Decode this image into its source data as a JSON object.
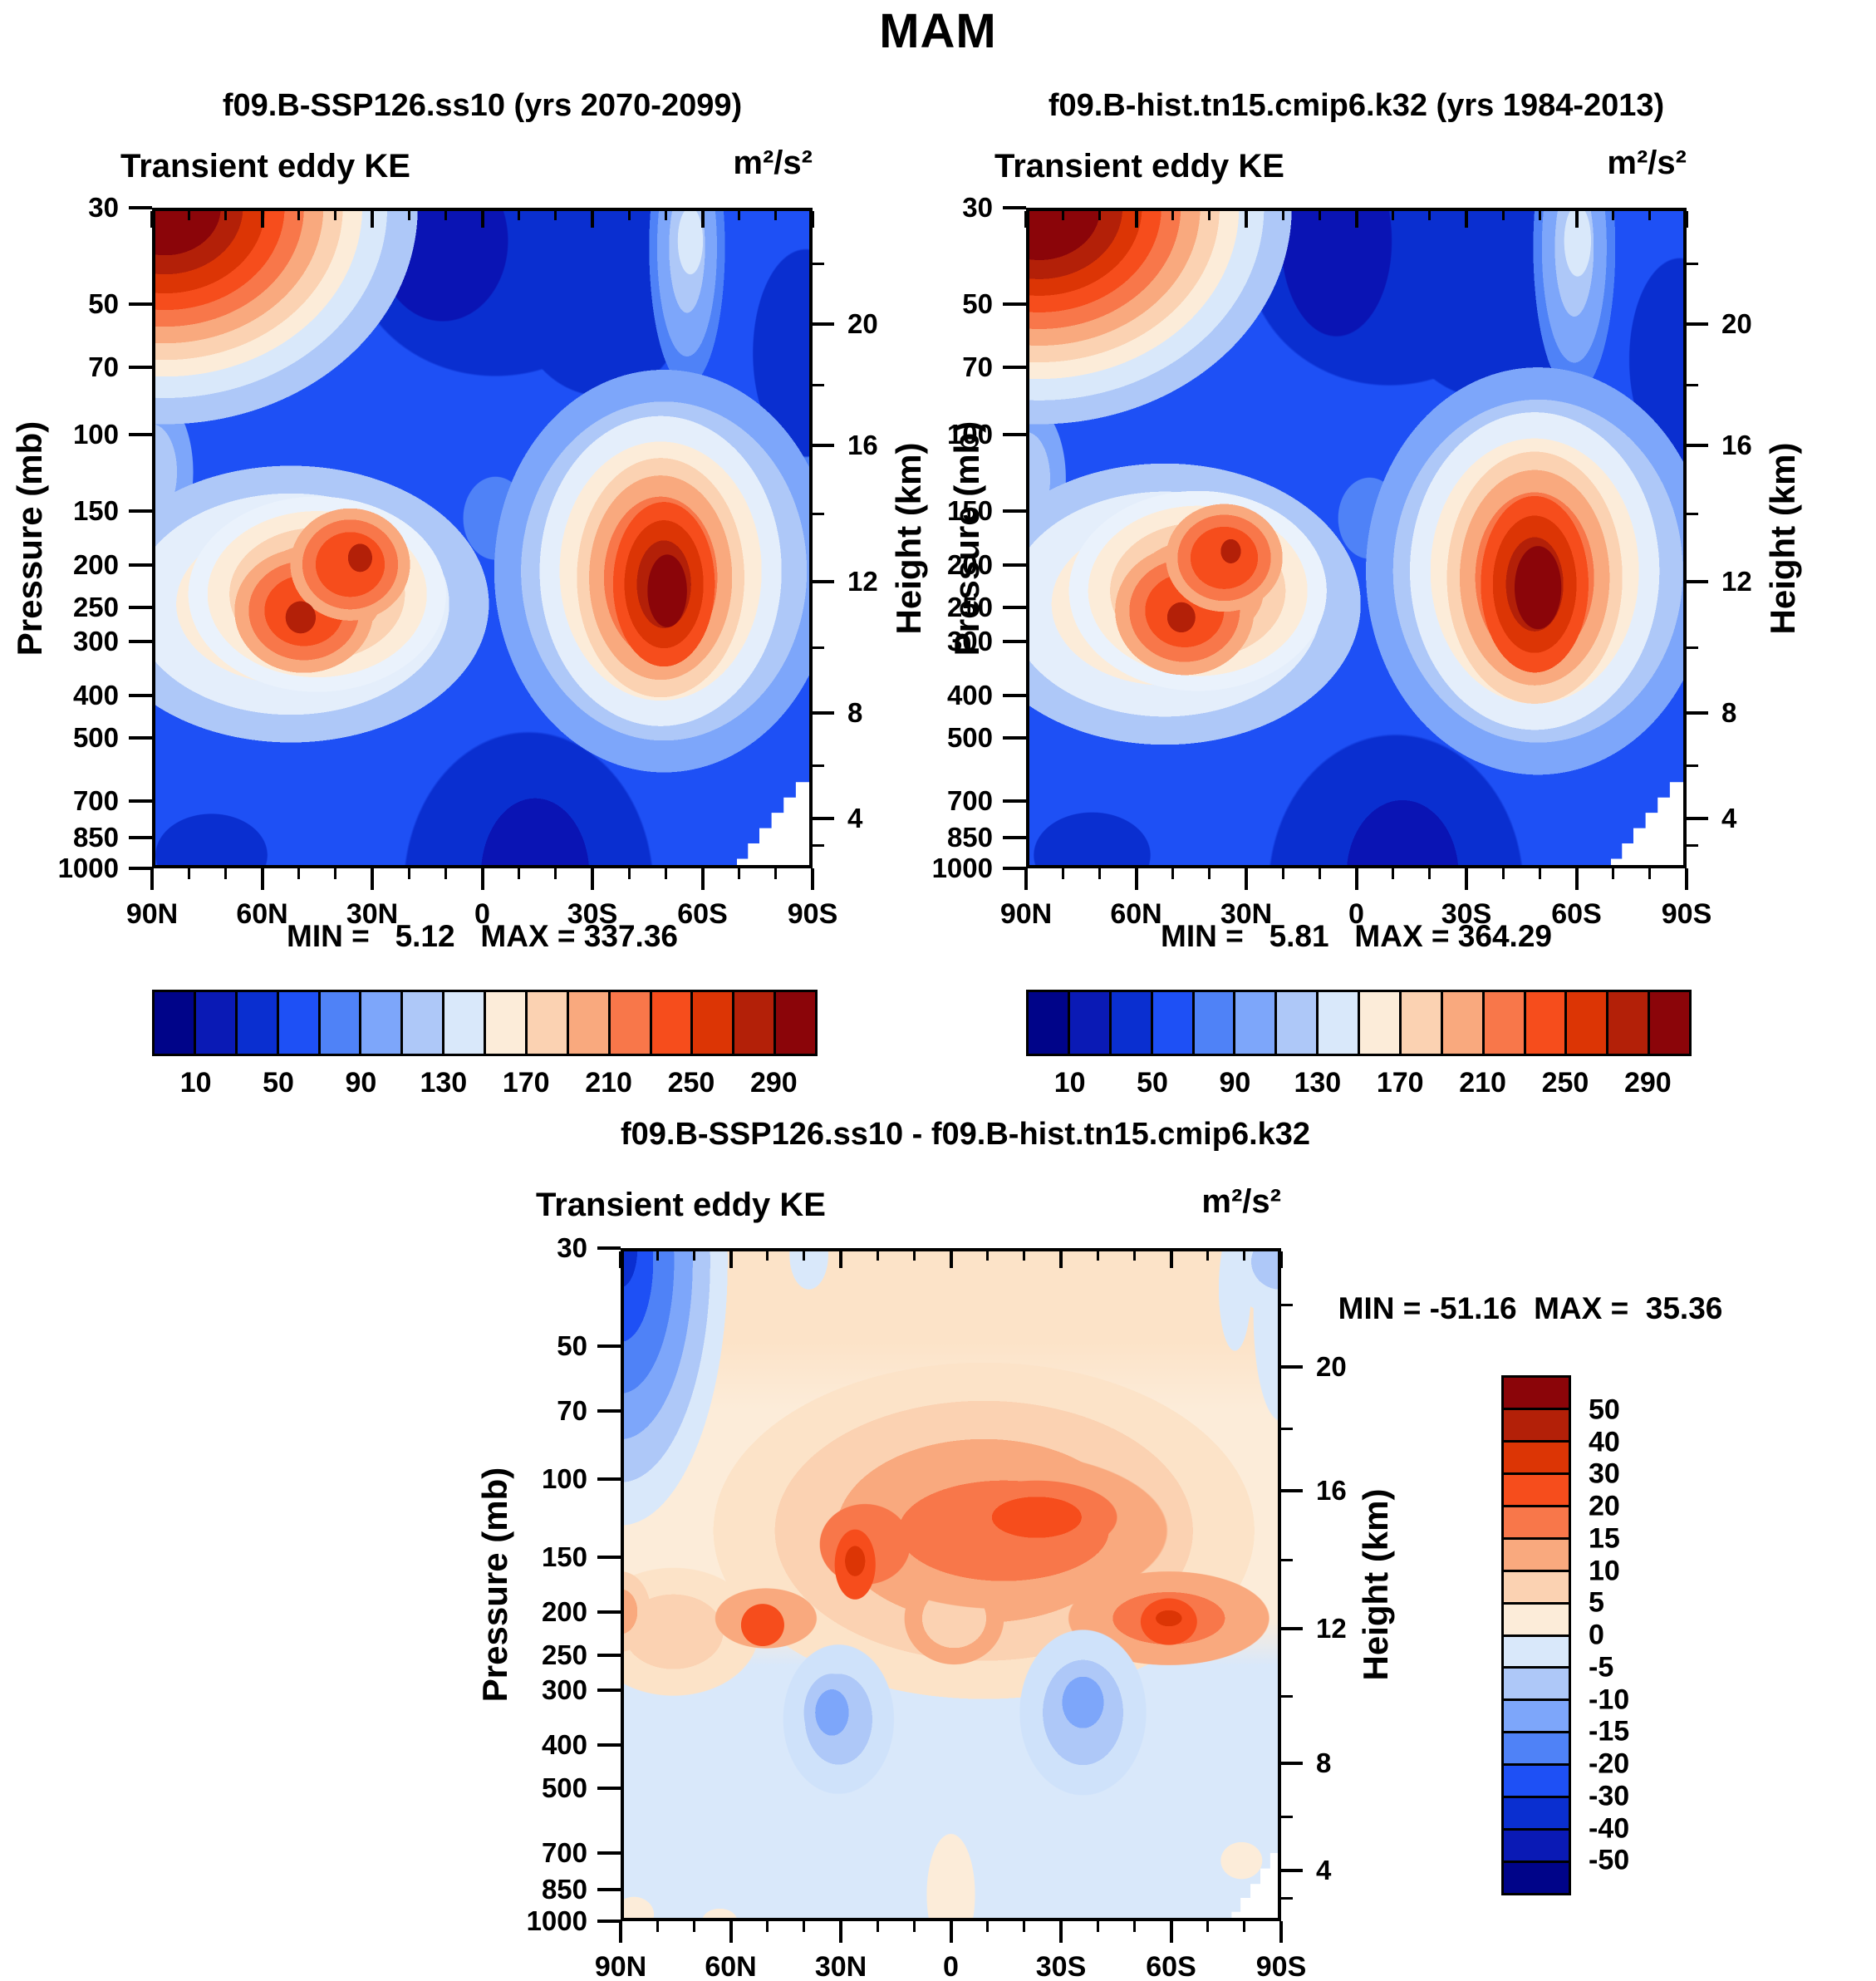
{
  "page": {
    "title": "MAM"
  },
  "panels": [
    {
      "title": "f09.B-SSP126.ss10 (yrs 2070-2099)",
      "field_label": "Transient eddy KE",
      "units": "m²/s²",
      "stats": "MIN =   5.12   MAX = 337.36"
    },
    {
      "title": "f09.B-hist.tn15.cmip6.k32 (yrs 1984-2013)",
      "field_label": "Transient eddy KE",
      "units": "m²/s²",
      "stats": "MIN =   5.81   MAX = 364.29"
    },
    {
      "title": "f09.B-SSP126.ss10 - f09.B-hist.tn15.cmip6.k32",
      "field_label": "Transient eddy KE",
      "units": "m²/s²",
      "stats": "MIN = -51.16  MAX =  35.36"
    }
  ],
  "axes": {
    "pressure": {
      "label": "Pressure (mb)",
      "ticks": [
        "30",
        "50",
        "70",
        "100",
        "150",
        "200",
        "250",
        "300",
        "400",
        "500",
        "700",
        "850",
        "1000"
      ]
    },
    "latitude": {
      "ticks": [
        "90N",
        "60N",
        "30N",
        "0",
        "30S",
        "60S",
        "90S"
      ]
    },
    "height": {
      "label": "Height (km)",
      "ticks": [
        "20",
        "16",
        "12",
        "8",
        "4"
      ]
    }
  },
  "colorbars": {
    "top": {
      "labels": [
        "10",
        "50",
        "90",
        "130",
        "170",
        "210",
        "250",
        "290"
      ]
    },
    "diff": {
      "labels": [
        "50",
        "40",
        "30",
        "20",
        "15",
        "10",
        "5",
        "0",
        "-5",
        "-10",
        "-15",
        "-20",
        "-30",
        "-40",
        "-50"
      ]
    }
  },
  "palette": [
    "#000489",
    "#0a1ab5",
    "#0a2fd0",
    "#1e50f5",
    "#4f82f7",
    "#7da6fa",
    "#aec8f8",
    "#d9e8fa",
    "#fcecd9",
    "#fbd2b2",
    "#f9a97e",
    "#f8774a",
    "#f64d1c",
    "#dc3505",
    "#b32008",
    "#8b0509"
  ],
  "chart_data": [
    {
      "type": "heatmap",
      "variant": "filled-contour latitude-pressure section",
      "season": "MAM",
      "title": "f09.B-SSP126.ss10 (yrs 2070-2099)",
      "variable": "Transient eddy KE",
      "units": "m2/s2",
      "x_axis": {
        "label": "Latitude",
        "range": [
          "90N",
          "90S"
        ],
        "ticks": [
          "90N",
          "60N",
          "30N",
          "0",
          "30S",
          "60S",
          "90S"
        ]
      },
      "y_axis_left": {
        "label": "Pressure (mb)",
        "scale": "log",
        "range": [
          30,
          1000
        ],
        "ticks": [
          30,
          50,
          70,
          100,
          150,
          200,
          250,
          300,
          400,
          500,
          700,
          850,
          1000
        ]
      },
      "y_axis_right": {
        "label": "Height (km)",
        "ticks": [
          20,
          16,
          12,
          8,
          4
        ]
      },
      "min": 5.12,
      "max": 337.36,
      "contour_levels": [
        10,
        30,
        50,
        70,
        90,
        110,
        130,
        150,
        170,
        190,
        210,
        230,
        250,
        270,
        290
      ],
      "features": [
        {
          "name": "NH polar stratospheric maximum",
          "lat": "75N-90N",
          "pressure_mb": "30-60",
          "value": ">290"
        },
        {
          "name": "NH storm-track maximum",
          "lat": "30N-45N",
          "pressure_mb": "200-300",
          "value": "250-290"
        },
        {
          "name": "SH storm-track maximum",
          "lat": "45S-60S",
          "pressure_mb": "200-350",
          "value": ">290 (abs max 337.36)"
        },
        {
          "name": "Equatorial/SH stratospheric minimum",
          "lat": "10N-40S",
          "pressure_mb": "30-100",
          "value": "<30"
        },
        {
          "name": "Tropical lower-troposphere minimum",
          "lat": "10N-30S",
          "pressure_mb": "600-1000",
          "value": "<30"
        },
        {
          "name": "Antarctic topography blank wedge",
          "lat": "72S-90S",
          "pressure_mb": "550-1000",
          "value": "masked white"
        }
      ]
    },
    {
      "type": "heatmap",
      "variant": "filled-contour latitude-pressure section",
      "season": "MAM",
      "title": "f09.B-hist.tn15.cmip6.k32 (yrs 1984-2013)",
      "variable": "Transient eddy KE",
      "units": "m2/s2",
      "x_axis": {
        "label": "Latitude",
        "range": [
          "90N",
          "90S"
        ],
        "ticks": [
          "90N",
          "60N",
          "30N",
          "0",
          "30S",
          "60S",
          "90S"
        ]
      },
      "y_axis_left": {
        "label": "Pressure (mb)",
        "scale": "log",
        "range": [
          30,
          1000
        ],
        "ticks": [
          30,
          50,
          70,
          100,
          150,
          200,
          250,
          300,
          400,
          500,
          700,
          850,
          1000
        ]
      },
      "y_axis_right": {
        "label": "Height (km)",
        "ticks": [
          20,
          16,
          12,
          8,
          4
        ]
      },
      "min": 5.81,
      "max": 364.29,
      "contour_levels": [
        10,
        30,
        50,
        70,
        90,
        110,
        130,
        150,
        170,
        190,
        210,
        230,
        250,
        270,
        290
      ],
      "features": [
        {
          "name": "NH polar stratospheric maximum",
          "lat": "75N-90N",
          "pressure_mb": "30-60",
          "value": ">290"
        },
        {
          "name": "NH storm-track maximum",
          "lat": "30N-45N",
          "pressure_mb": "200-300",
          "value": "250-290"
        },
        {
          "name": "SH storm-track maximum",
          "lat": "45S-60S",
          "pressure_mb": "200-350",
          "value": ">290 (abs max 364.29)"
        },
        {
          "name": "Equatorial stratospheric minimum",
          "lat": "10N-40S",
          "pressure_mb": "30-100",
          "value": "<30"
        },
        {
          "name": "Tropical lower-troposphere minimum",
          "lat": "10N-30S",
          "pressure_mb": "600-1000",
          "value": "<30"
        },
        {
          "name": "Antarctic topography blank wedge",
          "lat": "72S-90S",
          "pressure_mb": "550-1000",
          "value": "masked white"
        }
      ]
    },
    {
      "type": "heatmap",
      "variant": "filled-contour difference (SSP126 minus historical)",
      "season": "MAM",
      "title": "f09.B-SSP126.ss10 - f09.B-hist.tn15.cmip6.k32",
      "variable": "Transient eddy KE",
      "units": "m2/s2",
      "x_axis": {
        "label": "Latitude",
        "range": [
          "90N",
          "90S"
        ],
        "ticks": [
          "90N",
          "60N",
          "30N",
          "0",
          "30S",
          "60S",
          "90S"
        ]
      },
      "y_axis_left": {
        "label": "Pressure (mb)",
        "scale": "log",
        "range": [
          30,
          1000
        ],
        "ticks": [
          30,
          50,
          70,
          100,
          150,
          200,
          250,
          300,
          400,
          500,
          700,
          850,
          1000
        ]
      },
      "y_axis_right": {
        "label": "Height (km)",
        "ticks": [
          20,
          16,
          12,
          8,
          4
        ]
      },
      "min": -51.16,
      "max": 35.36,
      "contour_levels": [
        -50,
        -40,
        -30,
        -20,
        -15,
        -10,
        -5,
        0,
        5,
        10,
        15,
        20,
        30,
        40,
        50
      ],
      "features": [
        {
          "name": "NH polar stratosphere decrease",
          "lat": "70N-90N",
          "pressure_mb": "30-200",
          "value": "-20 to -50 (abs min -51.16)"
        },
        {
          "name": "Upward/poleward-shifted storm tracks increase band",
          "lat": "60N-60S",
          "pressure_mb": "80-250",
          "value": "+5 to +30"
        },
        {
          "name": "Increase maximum",
          "lat": "~30N",
          "pressure_mb": "~150",
          "value": "+30 to +40 (abs max 35.36)"
        },
        {
          "name": "Increase maximum",
          "lat": "~60N",
          "pressure_mb": "~200",
          "value": "+20 to +30"
        },
        {
          "name": "Increase maximum",
          "lat": "~55S",
          "pressure_mb": "~200",
          "value": "+20 to +40"
        },
        {
          "name": "NH mid-troposphere decrease",
          "lat": "25N-40N",
          "pressure_mb": "300-500",
          "value": "-10 to -20"
        },
        {
          "name": "SH mid-troposphere decrease",
          "lat": "20S-40S",
          "pressure_mb": "300-500",
          "value": "-10 to -20"
        },
        {
          "name": "Weak lower-troposphere decrease",
          "lat": "most latitudes",
          "pressure_mb": "500-1000",
          "value": "-5 to 0"
        }
      ]
    }
  ]
}
